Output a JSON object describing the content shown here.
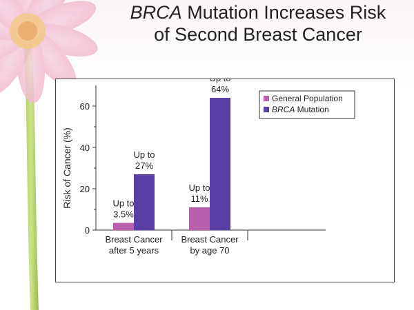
{
  "slide": {
    "title_line1_italic": "BRCA",
    "title_line1_rest": " Mutation Increases Risk",
    "title_line2": "of Second Breast Cancer"
  },
  "chart_data": {
    "type": "bar",
    "categories": [
      [
        "Breast Cancer",
        "after 5 years"
      ],
      [
        "Breast Cancer",
        "by age 70"
      ]
    ],
    "series": [
      {
        "name": "General Population",
        "color": "#b95fae",
        "values": [
          3.5,
          11
        ],
        "labels": [
          [
            "Up to",
            "3.5%"
          ],
          [
            "Up to",
            "11%"
          ]
        ]
      },
      {
        "name": "BRCA Mutation",
        "name_italic": "BRCA",
        "name_rest": " Mutation",
        "color": "#5a3fa6",
        "values": [
          27,
          64
        ],
        "labels": [
          [
            "Up to",
            "27%"
          ],
          [
            "Up to",
            "64%"
          ]
        ]
      }
    ],
    "ylabel": "Risk of Cancer (%)",
    "yticks": [
      0,
      20,
      40,
      60
    ],
    "ylim": [
      0,
      70
    ],
    "legend": "top-right",
    "grid": false
  }
}
